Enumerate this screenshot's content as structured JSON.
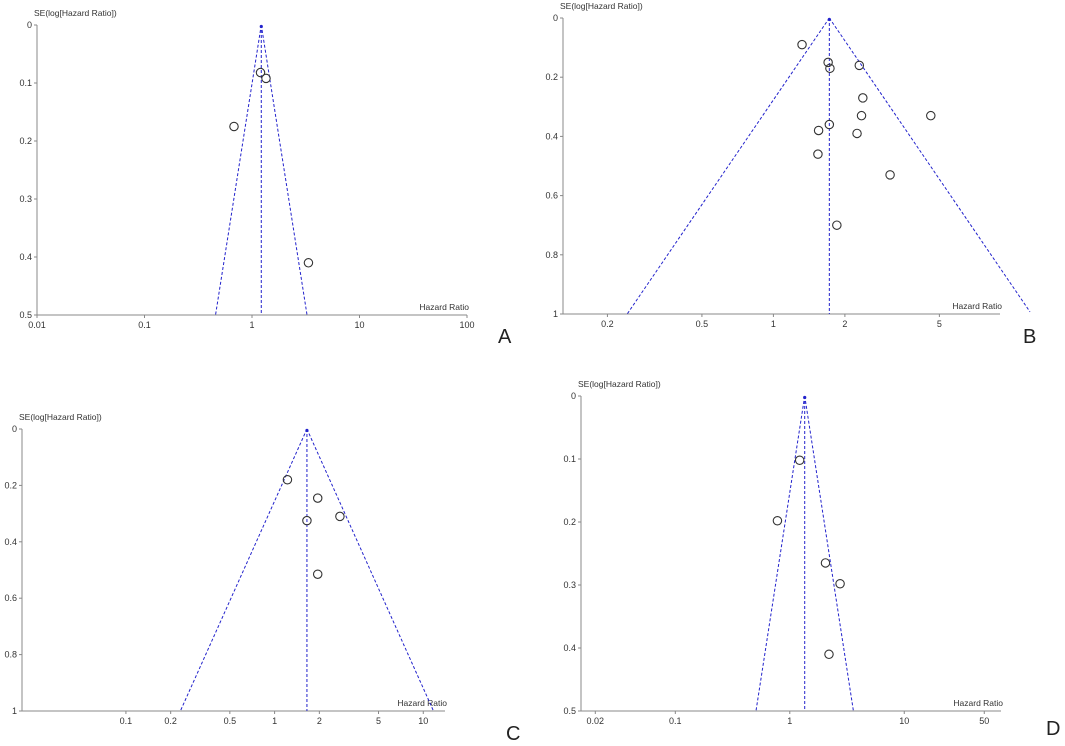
{
  "chart_data": [
    {
      "panel": "A",
      "type": "scatter",
      "xlabel": "Hazard Ratio",
      "ylabel": "SE(log[Hazard Ratio])",
      "xscale": "log",
      "xlim": [
        0.01,
        100
      ],
      "ylim": [
        0,
        0.5
      ],
      "xticks": [
        0.01,
        0.1,
        1,
        10,
        100
      ],
      "xtick_labels": [
        "0.01",
        "0.1",
        "1",
        "10",
        "100"
      ],
      "yticks": [
        0,
        0.1,
        0.2,
        0.3,
        0.4,
        0.5
      ],
      "ytick_labels": [
        "0",
        "0.1",
        "0.2",
        "0.3",
        "0.4",
        "0.5"
      ],
      "pooled_estimate": 1.22,
      "points": [
        {
          "x": 1.2,
          "y": 0.082
        },
        {
          "x": 1.35,
          "y": 0.092
        },
        {
          "x": 0.68,
          "y": 0.175
        },
        {
          "x": 3.35,
          "y": 0.41
        }
      ]
    },
    {
      "panel": "B",
      "type": "scatter",
      "xlabel": "Hazard Ratio",
      "ylabel": "SE(log[Hazard Ratio])",
      "xscale": "log",
      "xlim": [
        0.13,
        9
      ],
      "ylim": [
        0,
        1
      ],
      "xticks": [
        0.2,
        0.5,
        1,
        2,
        5
      ],
      "xtick_labels": [
        "0.2",
        "0.5",
        "1",
        "2",
        "5"
      ],
      "yticks": [
        0,
        0.2,
        0.4,
        0.6,
        0.8,
        1
      ],
      "ytick_labels": [
        "0",
        "0.2",
        "0.4",
        "0.6",
        "0.8",
        "1"
      ],
      "pooled_estimate": 1.72,
      "points": [
        {
          "x": 1.32,
          "y": 0.09
        },
        {
          "x": 1.7,
          "y": 0.15
        },
        {
          "x": 1.73,
          "y": 0.17
        },
        {
          "x": 2.3,
          "y": 0.16
        },
        {
          "x": 2.38,
          "y": 0.27
        },
        {
          "x": 2.35,
          "y": 0.33
        },
        {
          "x": 4.6,
          "y": 0.33
        },
        {
          "x": 1.72,
          "y": 0.36
        },
        {
          "x": 1.55,
          "y": 0.38
        },
        {
          "x": 2.25,
          "y": 0.39
        },
        {
          "x": 1.54,
          "y": 0.46
        },
        {
          "x": 3.1,
          "y": 0.53
        },
        {
          "x": 1.85,
          "y": 0.7
        }
      ]
    },
    {
      "panel": "C",
      "type": "scatter",
      "xlabel": "Hazard Ratio",
      "ylabel": "SE(log[Hazard Ratio])",
      "xscale": "log",
      "xlim": [
        0.02,
        14
      ],
      "ylim": [
        0,
        1
      ],
      "xticks": [
        0.1,
        0.2,
        0.5,
        1,
        2,
        5,
        10
      ],
      "xtick_labels": [
        "0.1",
        "0.2",
        "0.5",
        "1",
        "2",
        "5",
        "10"
      ],
      "yticks": [
        0,
        0.2,
        0.4,
        0.6,
        0.8,
        1
      ],
      "ytick_labels": [
        "0",
        "0.2",
        "0.4",
        "0.6",
        "0.8",
        "1"
      ],
      "pooled_estimate": 1.65,
      "points": [
        {
          "x": 1.22,
          "y": 0.18
        },
        {
          "x": 1.95,
          "y": 0.245
        },
        {
          "x": 2.75,
          "y": 0.31
        },
        {
          "x": 1.65,
          "y": 0.325
        },
        {
          "x": 1.95,
          "y": 0.515
        }
      ]
    },
    {
      "panel": "D",
      "type": "scatter",
      "xlabel": "Hazard Ratio",
      "ylabel": "SE(log[Hazard Ratio])",
      "xscale": "log",
      "xlim": [
        0.015,
        70
      ],
      "ylim": [
        0,
        0.5
      ],
      "xticks": [
        0.02,
        0.1,
        1,
        10,
        50
      ],
      "xtick_labels": [
        "0.02",
        "0.1",
        "1",
        "10",
        "50"
      ],
      "yticks": [
        0,
        0.1,
        0.2,
        0.3,
        0.4,
        0.5
      ],
      "ytick_labels": [
        "0",
        "0.1",
        "0.2",
        "0.3",
        "0.4",
        "0.5"
      ],
      "pooled_estimate": 1.35,
      "points": [
        {
          "x": 1.22,
          "y": 0.102
        },
        {
          "x": 0.78,
          "y": 0.198
        },
        {
          "x": 2.05,
          "y": 0.265
        },
        {
          "x": 2.75,
          "y": 0.298
        },
        {
          "x": 2.2,
          "y": 0.41
        }
      ]
    }
  ],
  "colors": {
    "funnel": "#2222cc",
    "point_stroke": "#333333",
    "axis": "#888888"
  }
}
